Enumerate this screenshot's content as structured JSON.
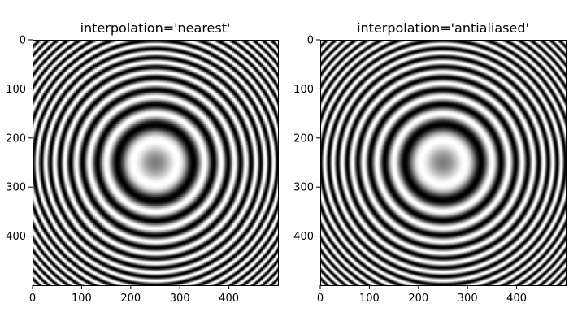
{
  "chart_data": [
    {
      "type": "heatmap",
      "title": "interpolation='nearest'",
      "interpolation": "nearest",
      "colormap": "gray",
      "xlim": [
        0,
        500
      ],
      "ylim": [
        500,
        0
      ],
      "xticks": [
        0,
        100,
        200,
        300,
        400
      ],
      "yticks": [
        0,
        100,
        200,
        300,
        400
      ],
      "pattern": "concentric rings (chirp) centered at (250, 250)"
    },
    {
      "type": "heatmap",
      "title": "interpolation='antialiased'",
      "interpolation": "antialiased",
      "colormap": "gray",
      "xlim": [
        0,
        500
      ],
      "ylim": [
        500,
        0
      ],
      "xticks": [
        0,
        100,
        200,
        300,
        400
      ],
      "yticks": [
        0,
        100,
        200,
        300,
        400
      ],
      "pattern": "concentric rings (chirp) centered at (250, 250)"
    }
  ]
}
